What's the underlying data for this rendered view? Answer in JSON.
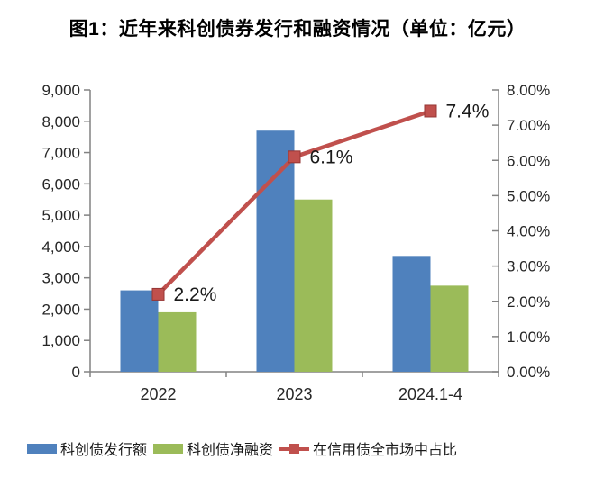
{
  "title": "图1：近年来科创债券发行和融资情况（单位：亿元）",
  "chart_data": {
    "type": "bar",
    "subtype": "grouped-bars-with-line-on-secondary-axis",
    "title": "图1：近年来科创债券发行和融资情况（单位：亿元）",
    "unit": "亿元",
    "categories": [
      "2022",
      "2023",
      "2024.1-4"
    ],
    "series": [
      {
        "name": "科创债发行额",
        "type": "bar",
        "axis": "left",
        "color": "#4F81BD",
        "values": [
          2600,
          7700,
          3700
        ]
      },
      {
        "name": "科创债净融资",
        "type": "bar",
        "axis": "left",
        "color": "#9BBB59",
        "values": [
          1900,
          5500,
          2750
        ]
      },
      {
        "name": "在信用债全市场中占比",
        "type": "line",
        "axis": "right",
        "color": "#C0504D",
        "marker": "square",
        "values": [
          2.2,
          6.1,
          7.4
        ],
        "point_labels": [
          "2.2%",
          "6.1%",
          "7.4%"
        ]
      }
    ],
    "left_axis": {
      "min": 0,
      "max": 9000,
      "step": 1000,
      "tick_labels_top_down": [
        "9,000",
        "8,000",
        "7,000",
        "6,000",
        "5,000",
        "4,000",
        "3,000",
        "2,000",
        "1,000",
        "0"
      ]
    },
    "right_axis": {
      "min": 0,
      "max": 8,
      "step": 1,
      "tick_labels_top_down": [
        "8.00%",
        "7.00%",
        "6.00%",
        "5.00%",
        "4.00%",
        "3.00%",
        "2.00%",
        "1.00%",
        "0.00%"
      ]
    },
    "grid": false,
    "legend_position": "bottom"
  },
  "legend": {
    "items": [
      {
        "label": "科创债发行额",
        "color": "#4F81BD",
        "marker": "rect"
      },
      {
        "label": "科创债净融资",
        "color": "#9BBB59",
        "marker": "rect"
      },
      {
        "label": "在信用债全市场中占比",
        "color": "#C0504D",
        "marker": "line-square"
      }
    ]
  },
  "colors": {
    "bar_blue": "#4F81BD",
    "bar_green": "#9BBB59",
    "line_red": "#C0504D",
    "marker_border": "#963634",
    "axis": "#828282",
    "text": "#262626",
    "label_text": "#1a1a1a",
    "background": "#ffffff"
  }
}
